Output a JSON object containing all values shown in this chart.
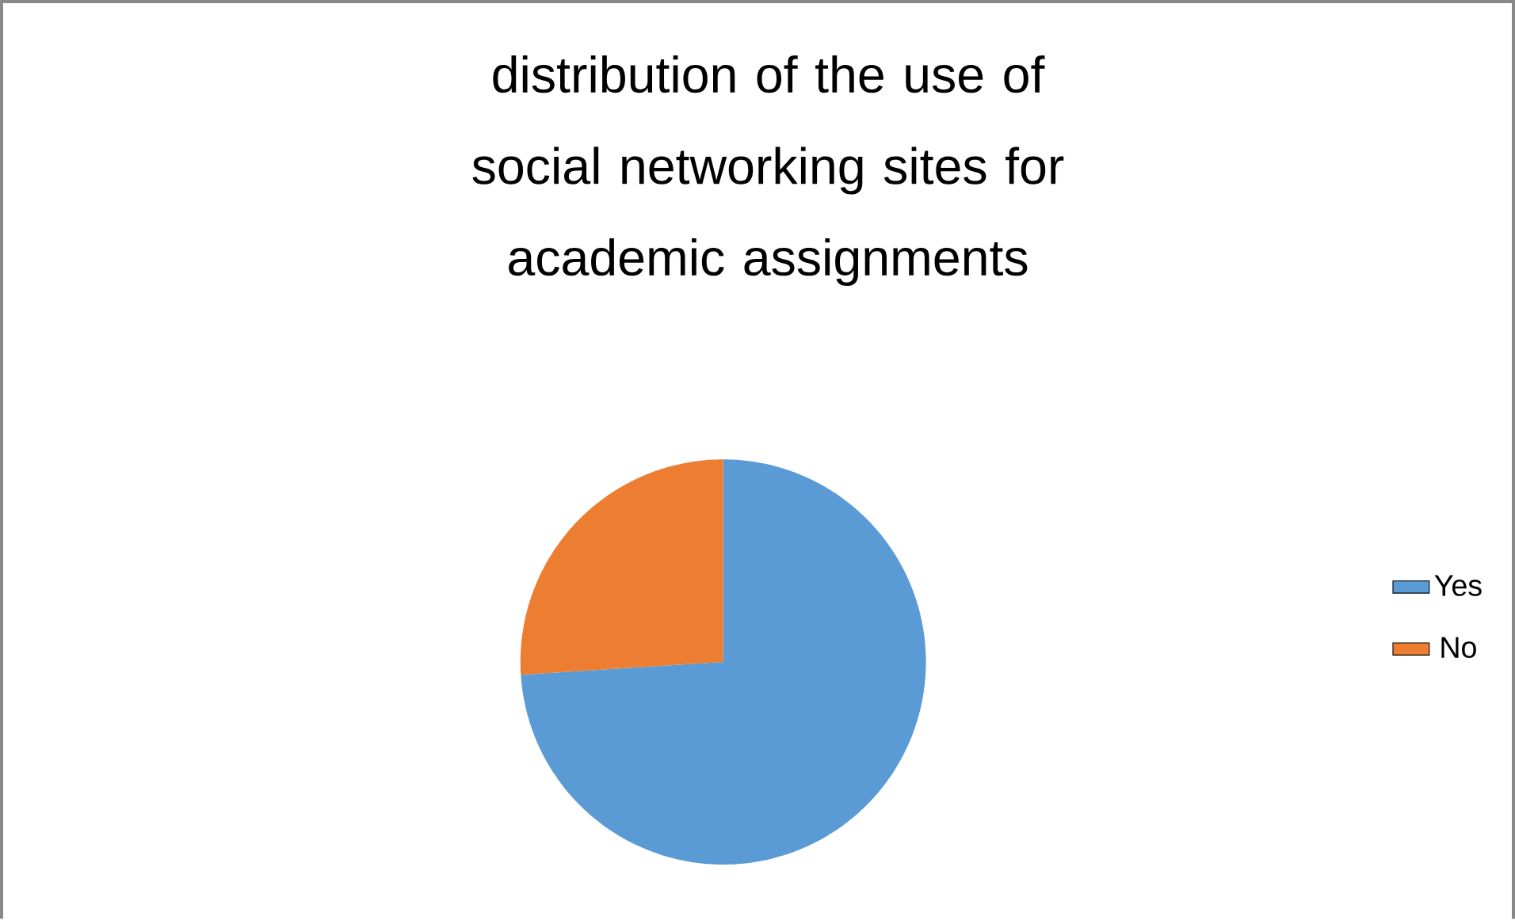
{
  "chart_data": {
    "type": "pie",
    "title": "distribution of the use of social networking sites for academic assignments",
    "categories": [
      "Yes",
      "No"
    ],
    "values": [
      74,
      26
    ],
    "colors": [
      "#5b9bd5",
      "#ed7d31"
    ],
    "legend": "right"
  }
}
